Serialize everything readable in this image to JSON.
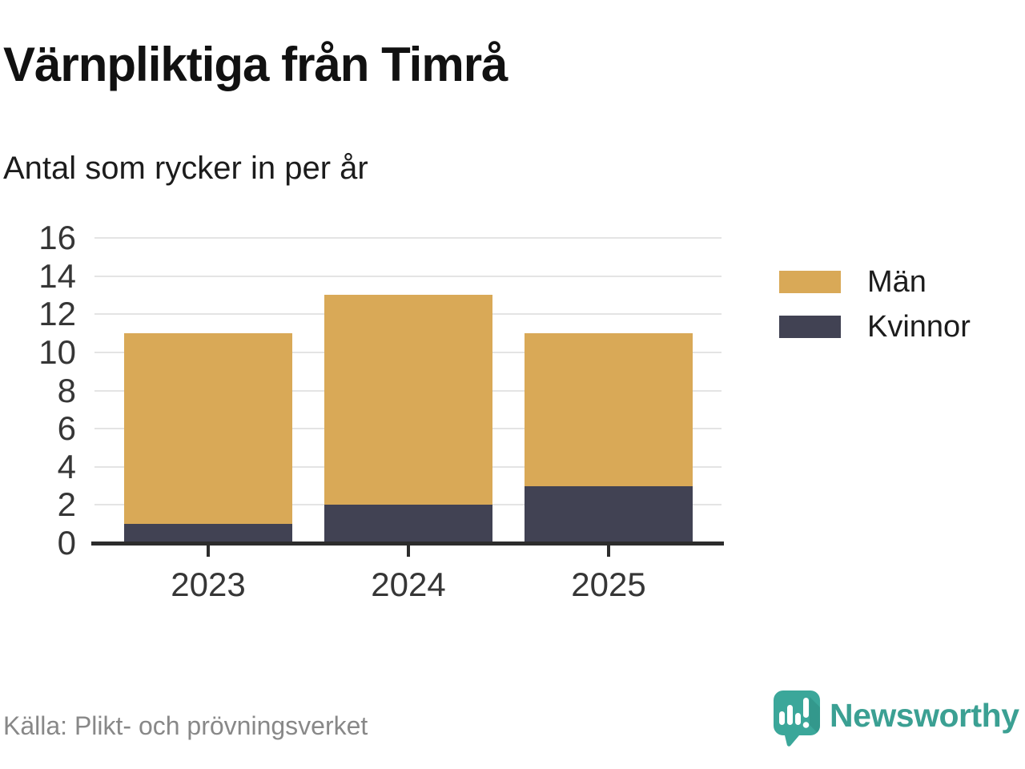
{
  "title": "Värnpliktiga från Timrå",
  "subtitle": "Antal som rycker in per år",
  "source": "Källa: Plikt- och prövningsverket",
  "logo": {
    "text": "Newsworthy",
    "teal": "#3ba79a"
  },
  "chart_data": {
    "type": "bar",
    "stacked": true,
    "title": "Värnpliktiga från Timrå",
    "subtitle": "Antal som rycker in per år",
    "categories": [
      "2023",
      "2024",
      "2025"
    ],
    "series": [
      {
        "name": "Män",
        "color": "#d9a957",
        "values": [
          10,
          11,
          8
        ]
      },
      {
        "name": "Kvinnor",
        "color": "#414253",
        "values": [
          1,
          2,
          3
        ]
      }
    ],
    "totals": [
      11,
      13,
      11
    ],
    "xlabel": "",
    "ylabel": "",
    "ylim": [
      0,
      16
    ],
    "yticks": [
      0,
      2,
      4,
      6,
      8,
      10,
      12,
      14,
      16
    ],
    "grid": true,
    "grid_color": "#e4e4e4",
    "axis_color": "#2c2c2c",
    "legend_position": "right"
  }
}
